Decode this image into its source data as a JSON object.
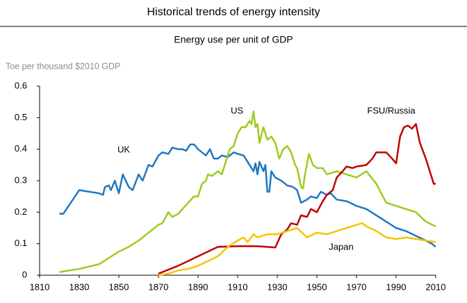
{
  "chart_data": {
    "type": "line",
    "title": "Historical trends of energy intensity",
    "subtitle": "Energy use per unit of GDP",
    "y_label": "Toe per thousand $2010 GDP",
    "xlim": [
      1810,
      2010
    ],
    "xticks": [
      1810,
      1830,
      1850,
      1870,
      1890,
      1910,
      1930,
      1950,
      1970,
      1990,
      2010
    ],
    "ylim": [
      0,
      0.6
    ],
    "yticks": [
      0,
      0.1,
      0.2,
      0.3,
      0.4,
      0.5,
      0.6
    ],
    "series": [
      {
        "name": "UK",
        "color": "#1f78c1",
        "x": [
          1820,
          1822,
          1830,
          1835,
          1840,
          1842,
          1843,
          1845,
          1846,
          1848,
          1850,
          1852,
          1855,
          1857,
          1860,
          1862,
          1865,
          1867,
          1870,
          1872,
          1875,
          1877,
          1880,
          1882,
          1884,
          1886,
          1888,
          1890,
          1892,
          1894,
          1896,
          1898,
          1900,
          1902,
          1905,
          1908,
          1910,
          1913,
          1915,
          1918,
          1919,
          1920,
          1921,
          1923,
          1924,
          1925,
          1926,
          1927,
          1929,
          1932,
          1935,
          1938,
          1940,
          1942,
          1945,
          1947,
          1950,
          1952,
          1955,
          1957,
          1960,
          1965,
          1970,
          1975,
          1980,
          1985,
          1990,
          1995,
          2000,
          2005,
          2008,
          2010
        ],
        "values": [
          0.195,
          0.195,
          0.27,
          0.265,
          0.26,
          0.255,
          0.28,
          0.285,
          0.27,
          0.3,
          0.26,
          0.32,
          0.28,
          0.27,
          0.32,
          0.3,
          0.35,
          0.345,
          0.38,
          0.39,
          0.385,
          0.405,
          0.4,
          0.4,
          0.395,
          0.415,
          0.415,
          0.4,
          0.39,
          0.38,
          0.4,
          0.37,
          0.37,
          0.38,
          0.375,
          0.39,
          0.385,
          0.38,
          0.36,
          0.33,
          0.355,
          0.32,
          0.36,
          0.33,
          0.35,
          0.265,
          0.265,
          0.33,
          0.31,
          0.3,
          0.285,
          0.28,
          0.27,
          0.23,
          0.24,
          0.25,
          0.245,
          0.265,
          0.255,
          0.26,
          0.24,
          0.235,
          0.22,
          0.21,
          0.19,
          0.17,
          0.15,
          0.14,
          0.125,
          0.11,
          0.1,
          0.09
        ]
      },
      {
        "name": "US",
        "color": "#9ccc1e",
        "x": [
          1820,
          1830,
          1840,
          1845,
          1850,
          1855,
          1860,
          1865,
          1870,
          1872,
          1875,
          1877,
          1880,
          1885,
          1888,
          1890,
          1892,
          1894,
          1895,
          1897,
          1900,
          1902,
          1904,
          1906,
          1908,
          1910,
          1912,
          1914,
          1916,
          1917,
          1918,
          1919,
          1920,
          1921,
          1923,
          1925,
          1927,
          1929,
          1931,
          1933,
          1935,
          1937,
          1939,
          1940,
          1942,
          1943,
          1944,
          1946,
          1948,
          1950,
          1953,
          1955,
          1960,
          1965,
          1970,
          1975,
          1980,
          1985,
          1990,
          1995,
          2000,
          2005,
          2010
        ],
        "values": [
          0.01,
          0.02,
          0.035,
          0.055,
          0.075,
          0.09,
          0.11,
          0.135,
          0.16,
          0.165,
          0.2,
          0.185,
          0.195,
          0.23,
          0.25,
          0.25,
          0.29,
          0.3,
          0.32,
          0.315,
          0.33,
          0.32,
          0.36,
          0.4,
          0.41,
          0.45,
          0.47,
          0.47,
          0.49,
          0.48,
          0.52,
          0.47,
          0.48,
          0.42,
          0.47,
          0.43,
          0.44,
          0.42,
          0.37,
          0.4,
          0.41,
          0.39,
          0.35,
          0.34,
          0.28,
          0.275,
          0.32,
          0.385,
          0.35,
          0.34,
          0.34,
          0.32,
          0.33,
          0.32,
          0.31,
          0.33,
          0.29,
          0.23,
          0.22,
          0.21,
          0.2,
          0.17,
          0.155
        ]
      },
      {
        "name": "FSU/Russia",
        "color": "#c00000",
        "x": [
          1870,
          1880,
          1890,
          1900,
          1910,
          1920,
          1929,
          1932,
          1935,
          1937,
          1940,
          1942,
          1945,
          1947,
          1950,
          1953,
          1955,
          1958,
          1960,
          1963,
          1965,
          1968,
          1970,
          1975,
          1978,
          1980,
          1985,
          1988,
          1990,
          1992,
          1994,
          1996,
          1998,
          2000,
          2002,
          2005,
          2007,
          2009,
          2010
        ],
        "values": [
          0.005,
          0.03,
          0.06,
          0.09,
          0.092,
          0.092,
          0.088,
          0.13,
          0.145,
          0.165,
          0.16,
          0.19,
          0.185,
          0.21,
          0.2,
          0.235,
          0.255,
          0.27,
          0.31,
          0.33,
          0.345,
          0.34,
          0.345,
          0.35,
          0.37,
          0.39,
          0.39,
          0.37,
          0.355,
          0.44,
          0.47,
          0.475,
          0.465,
          0.48,
          0.42,
          0.37,
          0.33,
          0.29,
          0.29
        ]
      },
      {
        "name": "Japan",
        "color": "#f5c400",
        "x": [
          1870,
          1875,
          1880,
          1885,
          1890,
          1895,
          1900,
          1905,
          1910,
          1913,
          1915,
          1918,
          1920,
          1925,
          1930,
          1935,
          1940,
          1945,
          1950,
          1955,
          1960,
          1965,
          1970,
          1973,
          1975,
          1980,
          1985,
          1990,
          1995,
          2000,
          2005,
          2010
        ],
        "values": [
          0,
          0.005,
          0.015,
          0.02,
          0.03,
          0.045,
          0.06,
          0.09,
          0.11,
          0.12,
          0.105,
          0.13,
          0.12,
          0.13,
          0.13,
          0.14,
          0.15,
          0.12,
          0.135,
          0.13,
          0.14,
          0.15,
          0.16,
          0.165,
          0.155,
          0.14,
          0.12,
          0.115,
          0.12,
          0.115,
          0.11,
          0.105
        ]
      }
    ]
  }
}
